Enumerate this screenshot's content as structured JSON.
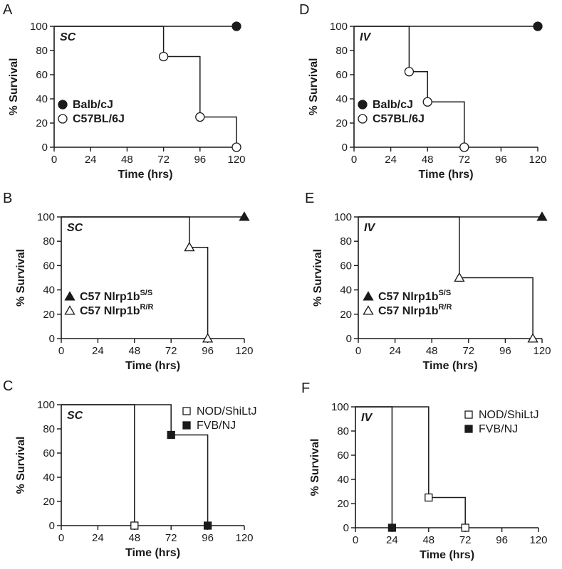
{
  "chart_data": [
    {
      "panel": "A",
      "type": "line",
      "route": "SC",
      "xlabel": "Time (hrs)",
      "ylabel": "% Survival",
      "xlim": [
        0,
        120
      ],
      "ylim": [
        0,
        100
      ],
      "xticks": [
        0,
        24,
        48,
        72,
        96,
        120
      ],
      "yticks": [
        0,
        20,
        40,
        60,
        80,
        100
      ],
      "legend_position": "bottom-left",
      "series": [
        {
          "name": "Balb/cJ",
          "marker": "filled-circle",
          "steps": [
            [
              0,
              100
            ],
            [
              120,
              100
            ]
          ],
          "points": [
            [
              120,
              100
            ]
          ]
        },
        {
          "name": "C57BL/6J",
          "marker": "open-circle",
          "steps": [
            [
              0,
              100
            ],
            [
              72,
              100
            ],
            [
              72,
              75
            ],
            [
              96,
              75
            ],
            [
              96,
              25
            ],
            [
              120,
              25
            ],
            [
              120,
              0
            ]
          ],
          "points": [
            [
              72,
              75
            ],
            [
              96,
              25
            ],
            [
              120,
              0
            ]
          ]
        }
      ]
    },
    {
      "panel": "B",
      "type": "line",
      "route": "SC",
      "xlabel": "Time (hrs)",
      "ylabel": "% Survival",
      "xlim": [
        0,
        120
      ],
      "ylim": [
        0,
        100
      ],
      "xticks": [
        0,
        24,
        48,
        72,
        96,
        120
      ],
      "yticks": [
        0,
        20,
        40,
        60,
        80,
        100
      ],
      "legend_position": "bottom-left",
      "series": [
        {
          "name": "C57 Nlrp1b",
          "name_sup": "S/S",
          "marker": "filled-triangle",
          "steps": [
            [
              0,
              100
            ],
            [
              120,
              100
            ]
          ],
          "points": [
            [
              120,
              100
            ]
          ]
        },
        {
          "name": "C57 Nlrp1b",
          "name_sup": "R/R",
          "marker": "open-triangle",
          "steps": [
            [
              0,
              100
            ],
            [
              84,
              100
            ],
            [
              84,
              75
            ],
            [
              96,
              75
            ],
            [
              96,
              0
            ]
          ],
          "points": [
            [
              84,
              75
            ],
            [
              96,
              0
            ]
          ]
        }
      ]
    },
    {
      "panel": "C",
      "type": "line",
      "route": "SC",
      "xlabel": "Time (hrs)",
      "ylabel": "% Survival",
      "xlim": [
        0,
        120
      ],
      "ylim": [
        0,
        100
      ],
      "xticks": [
        0,
        24,
        48,
        72,
        96,
        120
      ],
      "yticks": [
        0,
        20,
        40,
        60,
        80,
        100
      ],
      "legend_position": "top-right",
      "series": [
        {
          "name": "NOD/ShiLtJ",
          "marker": "open-square",
          "steps": [
            [
              0,
              100
            ],
            [
              48,
              100
            ],
            [
              48,
              0
            ]
          ],
          "points": [
            [
              48,
              0
            ]
          ]
        },
        {
          "name": "FVB/NJ",
          "marker": "filled-square",
          "steps": [
            [
              0,
              100
            ],
            [
              72,
              100
            ],
            [
              72,
              75
            ],
            [
              96,
              75
            ],
            [
              96,
              0
            ]
          ],
          "points": [
            [
              72,
              75
            ],
            [
              96,
              0
            ]
          ]
        }
      ]
    },
    {
      "panel": "D",
      "type": "line",
      "route": "IV",
      "xlabel": "Time (hrs)",
      "ylabel": "% Survival",
      "xlim": [
        0,
        120
      ],
      "ylim": [
        0,
        100
      ],
      "xticks": [
        0,
        24,
        48,
        72,
        96,
        120
      ],
      "yticks": [
        0,
        20,
        40,
        60,
        80,
        100
      ],
      "legend_position": "bottom-left",
      "series": [
        {
          "name": "Balb/cJ",
          "marker": "filled-circle",
          "steps": [
            [
              0,
              100
            ],
            [
              120,
              100
            ]
          ],
          "points": [
            [
              120,
              100
            ]
          ]
        },
        {
          "name": "C57BL/6J",
          "marker": "open-circle",
          "steps": [
            [
              0,
              100
            ],
            [
              36,
              100
            ],
            [
              36,
              62.5
            ],
            [
              48,
              62.5
            ],
            [
              48,
              37.5
            ],
            [
              72,
              37.5
            ],
            [
              72,
              0
            ]
          ],
          "points": [
            [
              36,
              62.5
            ],
            [
              48,
              37.5
            ],
            [
              72,
              0
            ]
          ]
        }
      ]
    },
    {
      "panel": "E",
      "type": "line",
      "route": "IV",
      "xlabel": "Time (hrs)",
      "ylabel": "% Survival",
      "xlim": [
        0,
        120
      ],
      "ylim": [
        0,
        100
      ],
      "xticks": [
        0,
        24,
        48,
        72,
        96,
        120
      ],
      "yticks": [
        0,
        20,
        40,
        60,
        80,
        100
      ],
      "legend_position": "bottom-left",
      "series": [
        {
          "name": "C57 Nlrp1b",
          "name_sup": "S/S",
          "marker": "filled-triangle",
          "steps": [
            [
              0,
              100
            ],
            [
              120,
              100
            ]
          ],
          "points": [
            [
              120,
              100
            ]
          ]
        },
        {
          "name": "C57 Nlrp1b",
          "name_sup": "R/R",
          "marker": "open-triangle",
          "steps": [
            [
              0,
              100
            ],
            [
              66,
              100
            ],
            [
              66,
              50
            ],
            [
              114,
              50
            ],
            [
              114,
              0
            ]
          ],
          "points": [
            [
              66,
              50
            ],
            [
              114,
              0
            ]
          ]
        }
      ]
    },
    {
      "panel": "F",
      "type": "line",
      "route": "IV",
      "xlabel": "Time (hrs)",
      "ylabel": "% Survival",
      "xlim": [
        0,
        120
      ],
      "ylim": [
        0,
        100
      ],
      "xticks": [
        0,
        24,
        48,
        72,
        96,
        120
      ],
      "yticks": [
        0,
        20,
        40,
        60,
        80,
        100
      ],
      "legend_position": "top-right",
      "series": [
        {
          "name": "NOD/ShiLtJ",
          "marker": "open-square",
          "steps": [
            [
              0,
              100
            ],
            [
              48,
              100
            ],
            [
              48,
              25
            ],
            [
              72,
              25
            ],
            [
              72,
              0
            ]
          ],
          "points": [
            [
              48,
              25
            ],
            [
              72,
              0
            ]
          ]
        },
        {
          "name": "FVB/NJ",
          "marker": "filled-square",
          "steps": [
            [
              0,
              100
            ],
            [
              24,
              100
            ],
            [
              24,
              0
            ]
          ],
          "points": [
            [
              24,
              0
            ]
          ]
        }
      ]
    }
  ]
}
